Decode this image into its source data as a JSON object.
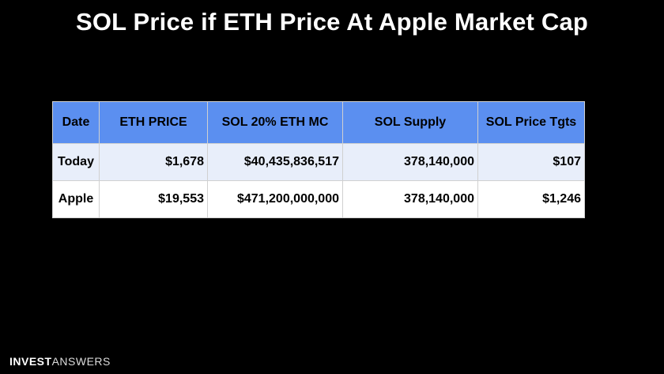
{
  "title": "SOL Price if ETH Price At Apple Market Cap",
  "table": {
    "headers": [
      "Date",
      "ETH PRICE",
      "SOL 20% ETH MC",
      "SOL Supply",
      "SOL Price Tgts"
    ],
    "rows": [
      [
        "Today",
        "$1,678",
        "$40,435,836,517",
        "378,140,000",
        "$107"
      ],
      [
        "Apple",
        "$19,553",
        "$471,200,000,000",
        "378,140,000",
        "$1,246"
      ]
    ]
  },
  "brand": {
    "part1": "INVEST",
    "part2": "ANSWERS"
  },
  "colors": {
    "header_bg": "#5b8ff0",
    "row1_bg": "#e8eefa",
    "row2_bg": "#ffffff",
    "background": "#000000"
  }
}
